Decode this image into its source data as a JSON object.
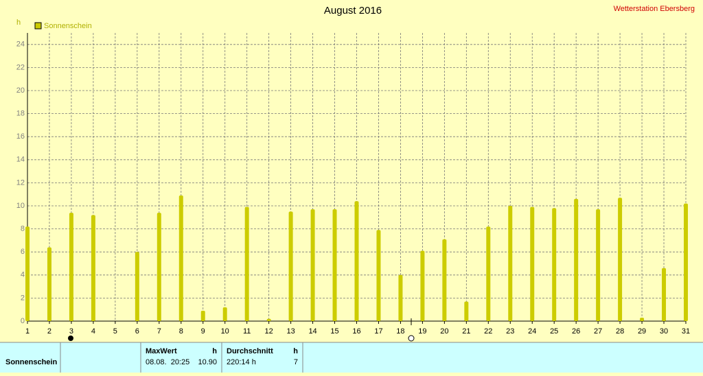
{
  "chart_data": {
    "type": "bar",
    "title": "August 2016",
    "annotation": "Wetterstation Ebersberg",
    "y_label": "h",
    "x": [
      1,
      2,
      3,
      4,
      5,
      6,
      7,
      8,
      9,
      10,
      11,
      12,
      13,
      14,
      15,
      16,
      17,
      18,
      19,
      20,
      21,
      22,
      23,
      24,
      25,
      26,
      27,
      28,
      29,
      30,
      31
    ],
    "xlim": [
      1,
      31
    ],
    "xticks": [
      1,
      2,
      3,
      4,
      5,
      6,
      7,
      8,
      9,
      10,
      11,
      12,
      13,
      14,
      15,
      16,
      17,
      18,
      19,
      20,
      21,
      22,
      23,
      24,
      25,
      26,
      27,
      28,
      29,
      30,
      31
    ],
    "series": [
      {
        "name": "Sonnenschein",
        "color": "#cccc00",
        "values": [
          8.2,
          6.4,
          9.4,
          9.2,
          0,
          6.0,
          9.4,
          10.9,
          0.9,
          1.2,
          9.9,
          0.2,
          9.5,
          9.7,
          9.7,
          10.4,
          7.9,
          4.0,
          6.1,
          7.1,
          1.7,
          8.2,
          10.0,
          9.9,
          9.8,
          10.6,
          9.7,
          10.7,
          0.3,
          4.6,
          10.2
        ]
      }
    ],
    "ylim": [
      0,
      25
    ],
    "yticks": [
      0,
      2,
      4,
      6,
      8,
      10,
      12,
      14,
      16,
      18,
      20,
      22,
      24
    ],
    "grid": true
  },
  "table": {
    "row_label": "Sonnenschein",
    "headers": [
      "MaxWert",
      "h",
      "Durchschnitt",
      "h"
    ],
    "cells": [
      "08.08.  20:25",
      "10.90",
      "220:14 h",
      "7"
    ]
  }
}
